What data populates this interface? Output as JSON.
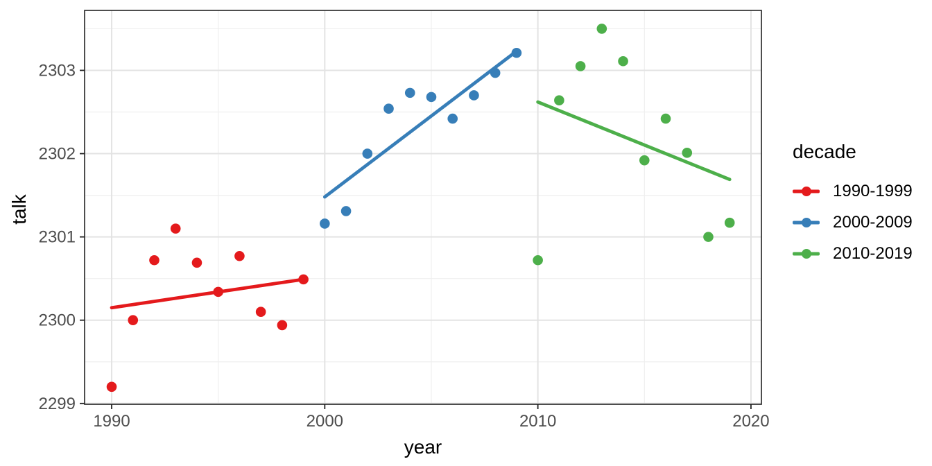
{
  "chart_data": {
    "type": "scatter",
    "title": "",
    "xlabel": "year",
    "ylabel": "talk",
    "legend_title": "decade",
    "legend_position": "right",
    "grid": true,
    "xlim": [
      1988.73,
      2020.49
    ],
    "ylim": [
      2298.99,
      2303.72
    ],
    "x_tick_values": [
      1990,
      2000,
      2010,
      2020
    ],
    "y_tick_values": [
      2299,
      2300,
      2301,
      2302,
      2303
    ],
    "x_minor_ticks": [
      1995,
      2005,
      2015
    ],
    "y_minor_ticks": [
      2299.5,
      2300.5,
      2301.5,
      2302.5,
      2303.5
    ],
    "colors": {
      "grid_major": "#e3e3e3",
      "grid_minor": "#efefef",
      "panel_border": "#2f2f2f",
      "tick_label": "#4d4d4d",
      "panel_background": "#ffffff"
    },
    "series": [
      {
        "name": "1990-1999",
        "color": "#E41A1C",
        "x": [
          1990,
          1991,
          1992,
          1993,
          1994,
          1995,
          1996,
          1997,
          1998,
          1999
        ],
        "y": [
          2299.2,
          2300.0,
          2300.72,
          2301.1,
          2300.69,
          2300.34,
          2300.77,
          2300.1,
          2299.94,
          2300.49
        ],
        "trend": {
          "x": [
            1990,
            1999
          ],
          "y": [
            2300.15,
            2300.49
          ]
        }
      },
      {
        "name": "2000-2009",
        "color": "#377EB8",
        "x": [
          2000,
          2001,
          2002,
          2003,
          2004,
          2005,
          2006,
          2007,
          2008,
          2009
        ],
        "y": [
          2301.16,
          2301.31,
          2302.0,
          2302.54,
          2302.73,
          2302.68,
          2302.42,
          2302.7,
          2302.97,
          2303.21
        ],
        "trend": {
          "x": [
            2000,
            2009
          ],
          "y": [
            2301.48,
            2303.23
          ]
        }
      },
      {
        "name": "2010-2019",
        "color": "#4DAF4A",
        "x": [
          2010,
          2011,
          2012,
          2013,
          2014,
          2015,
          2016,
          2017,
          2018,
          2019
        ],
        "y": [
          2300.72,
          2302.64,
          2303.05,
          2303.5,
          2303.11,
          2301.92,
          2302.42,
          2302.01,
          2301.0,
          2301.17
        ],
        "trend": {
          "x": [
            2010,
            2019
          ],
          "y": [
            2302.62,
            2301.69
          ]
        }
      }
    ]
  }
}
